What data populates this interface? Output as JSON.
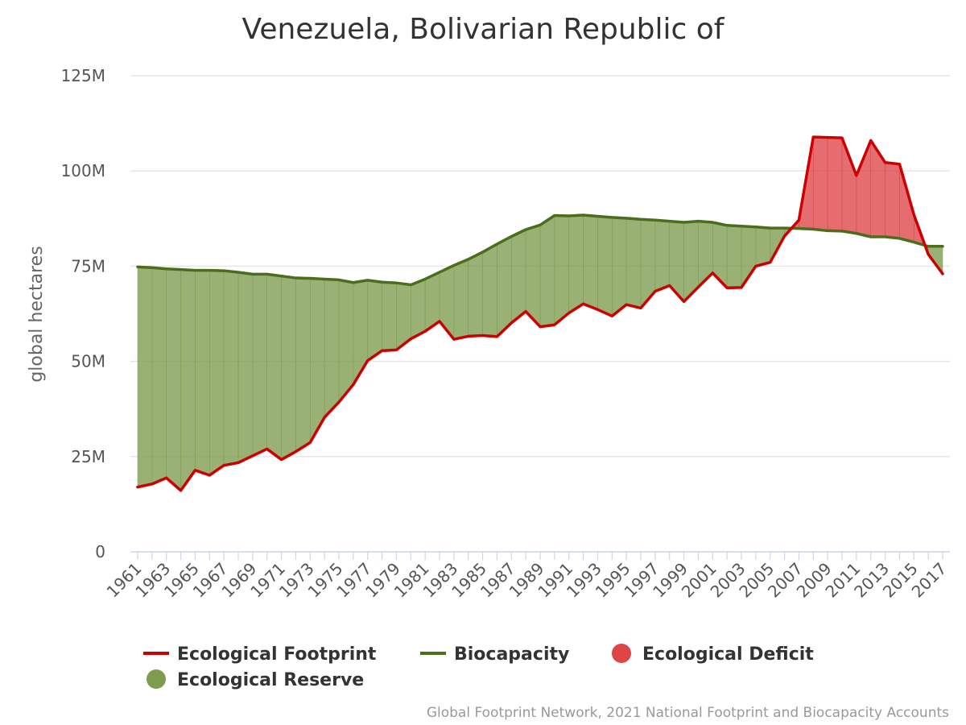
{
  "chart_data": {
    "type": "area",
    "title": "Venezuela, Bolivarian Republic of",
    "ylabel": "global hectares",
    "xlabel": "",
    "ylim": [
      0,
      125000000
    ],
    "yticks": [
      {
        "value": 0,
        "label": "0"
      },
      {
        "value": 25000000,
        "label": "25M"
      },
      {
        "value": 50000000,
        "label": "50M"
      },
      {
        "value": 75000000,
        "label": "75M"
      },
      {
        "value": 100000000,
        "label": "100M"
      },
      {
        "value": 125000000,
        "label": "125M"
      }
    ],
    "x_tick_labels": [
      "1961",
      "1963",
      "1965",
      "1967",
      "1969",
      "1971",
      "1973",
      "1975",
      "1977",
      "1979",
      "1981",
      "1983",
      "1985",
      "1987",
      "1989",
      "1991",
      "1993",
      "1995",
      "1997",
      "1999",
      "2001",
      "2003",
      "2005",
      "2007",
      "2009",
      "2011",
      "2013",
      "2015",
      "2017"
    ],
    "grid": true,
    "legend_position": "bottom",
    "legend": [
      {
        "label": "Ecological Footprint",
        "symbol": "line",
        "color": "#cc0000"
      },
      {
        "label": "Biocapacity",
        "symbol": "line",
        "color": "#4a6e1c"
      },
      {
        "label": "Ecological Deficit",
        "symbol": "circle",
        "color": "#de4448"
      },
      {
        "label": "Ecological Reserve",
        "symbol": "circle",
        "color": "#7e9b4e"
      }
    ],
    "x": [
      1961,
      1962,
      1963,
      1964,
      1965,
      1966,
      1967,
      1968,
      1969,
      1970,
      1971,
      1972,
      1973,
      1974,
      1975,
      1976,
      1977,
      1978,
      1979,
      1980,
      1981,
      1982,
      1983,
      1984,
      1985,
      1986,
      1987,
      1988,
      1989,
      1990,
      1991,
      1992,
      1993,
      1994,
      1995,
      1996,
      1997,
      1998,
      1999,
      2000,
      2001,
      2002,
      2003,
      2004,
      2005,
      2006,
      2007,
      2008,
      2009,
      2010,
      2011,
      2012,
      2013,
      2014,
      2015,
      2016,
      2017
    ],
    "series": [
      {
        "name": "Ecological Footprint",
        "color": "#cc0000",
        "values": [
          17000000,
          17800000,
          19400000,
          16100000,
          21400000,
          20100000,
          22700000,
          23400000,
          25200000,
          27000000,
          24200000,
          26300000,
          28700000,
          35300000,
          39300000,
          43900000,
          50200000,
          52800000,
          53000000,
          55900000,
          57900000,
          60500000,
          55800000,
          56600000,
          56800000,
          56500000,
          60100000,
          63100000,
          59100000,
          59600000,
          62700000,
          65100000,
          63600000,
          61900000,
          64900000,
          64000000,
          68400000,
          69900000,
          65700000,
          69500000,
          73200000,
          69300000,
          69400000,
          75000000,
          76000000,
          82900000,
          87100000,
          108900000,
          108800000,
          108700000,
          98800000,
          108000000,
          102200000,
          101800000,
          88500000,
          78100000,
          73000000
        ]
      },
      {
        "name": "Biocapacity",
        "color": "#4a6e1c",
        "values": [
          74800000,
          74600000,
          74300000,
          74100000,
          73900000,
          73900000,
          73800000,
          73400000,
          72900000,
          72900000,
          72400000,
          71900000,
          71800000,
          71600000,
          71400000,
          70700000,
          71300000,
          70800000,
          70600000,
          70100000,
          71600000,
          73400000,
          75200000,
          76800000,
          78700000,
          80800000,
          82800000,
          84600000,
          85800000,
          88300000,
          88200000,
          88400000,
          88100000,
          87800000,
          87600000,
          87300000,
          87100000,
          86800000,
          86500000,
          86800000,
          86500000,
          85700000,
          85500000,
          85300000,
          85000000,
          85000000,
          84900000,
          84700000,
          84300000,
          84200000,
          83600000,
          82700000,
          82700000,
          82300000,
          81300000,
          80200000,
          80200000
        ]
      }
    ]
  },
  "credits": "Global Footprint Network, 2021 National Footprint and Biocapacity Accounts"
}
